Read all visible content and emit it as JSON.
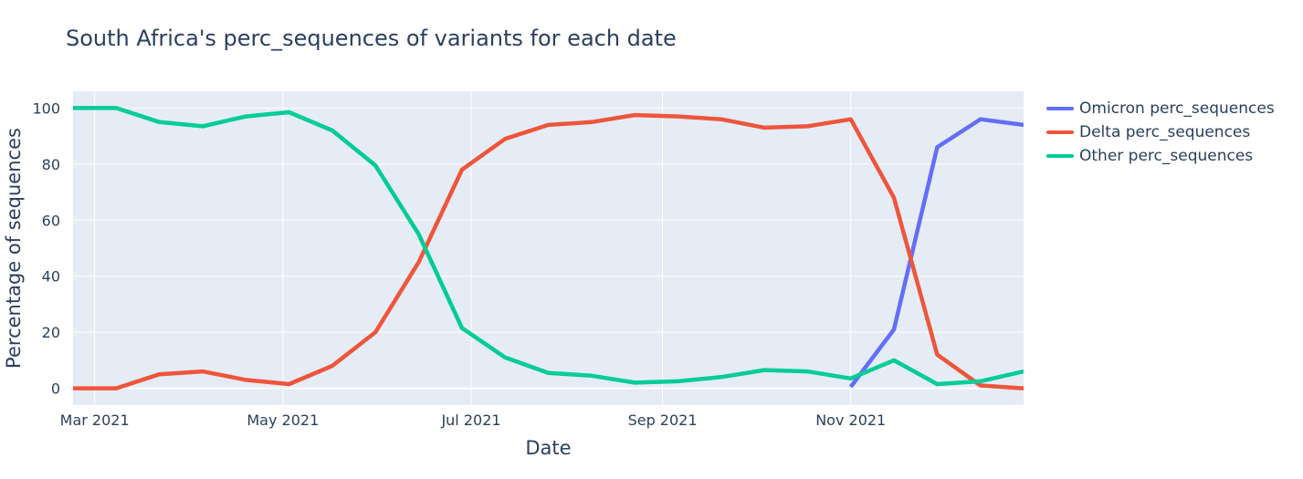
{
  "chart_data": {
    "type": "line",
    "title": "South Africa's perc_sequences of variants for each date",
    "xlabel": "Date",
    "ylabel": "Percentage of sequences",
    "x_ticks": [
      {
        "date": "2021-03-01",
        "label": "Mar 2021"
      },
      {
        "date": "2021-05-01",
        "label": "May 2021"
      },
      {
        "date": "2021-07-01",
        "label": "Jul 2021"
      },
      {
        "date": "2021-09-01",
        "label": "Sep 2021"
      },
      {
        "date": "2021-11-01",
        "label": "Nov 2021"
      }
    ],
    "xlim": [
      "2021-02-22",
      "2021-12-27"
    ],
    "ylim": [
      -6,
      106
    ],
    "y_ticks": [
      0,
      20,
      40,
      60,
      80,
      100
    ],
    "grid": true,
    "legend": "right",
    "background": "#e5ecf6",
    "series": [
      {
        "name": "Omicron perc_sequences",
        "color": "#636efa",
        "x": [
          "2021-11-01",
          "2021-11-15",
          "2021-11-29",
          "2021-12-13",
          "2021-12-27"
        ],
        "y": [
          0.5,
          21,
          86,
          96,
          94
        ]
      },
      {
        "name": "Delta perc_sequences",
        "color": "#ef553b",
        "x": [
          "2021-02-22",
          "2021-03-08",
          "2021-03-22",
          "2021-04-05",
          "2021-04-19",
          "2021-05-03",
          "2021-05-17",
          "2021-05-31",
          "2021-06-14",
          "2021-06-28",
          "2021-07-12",
          "2021-07-26",
          "2021-08-09",
          "2021-08-23",
          "2021-09-06",
          "2021-09-20",
          "2021-10-04",
          "2021-10-18",
          "2021-11-01",
          "2021-11-15",
          "2021-11-29",
          "2021-12-13",
          "2021-12-27"
        ],
        "y": [
          0,
          0,
          5,
          6,
          3,
          1.5,
          8,
          20,
          45,
          78,
          89,
          94,
          95,
          97.5,
          97,
          96,
          93,
          93.5,
          96,
          68,
          12,
          1,
          0
        ]
      },
      {
        "name": "Other perc_sequences",
        "color": "#00cc96",
        "x": [
          "2021-02-22",
          "2021-03-08",
          "2021-03-22",
          "2021-04-05",
          "2021-04-19",
          "2021-05-03",
          "2021-05-17",
          "2021-05-31",
          "2021-06-14",
          "2021-06-28",
          "2021-07-12",
          "2021-07-26",
          "2021-08-09",
          "2021-08-23",
          "2021-09-06",
          "2021-09-20",
          "2021-10-04",
          "2021-10-18",
          "2021-11-01",
          "2021-11-15",
          "2021-11-29",
          "2021-12-13",
          "2021-12-27"
        ],
        "y": [
          100,
          100,
          95,
          93.5,
          97,
          98.5,
          92,
          79.5,
          55,
          21.5,
          11,
          5.5,
          4.5,
          2,
          2.5,
          4,
          6.5,
          6,
          3.5,
          10,
          1.5,
          2.5,
          6
        ]
      }
    ]
  }
}
